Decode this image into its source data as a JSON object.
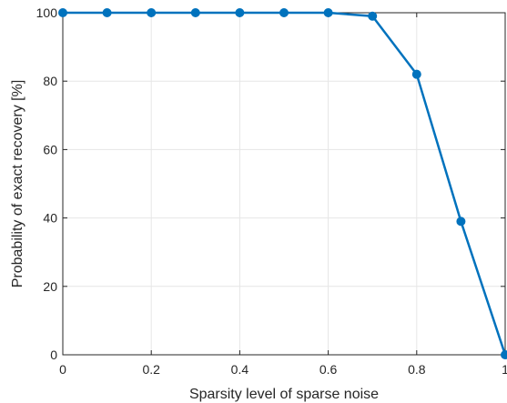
{
  "chart_data": {
    "type": "line",
    "title": "",
    "xlabel": "Sparsity level of sparse noise",
    "ylabel": "Probability of exact recovery [%]",
    "xlim": [
      0,
      1
    ],
    "ylim": [
      0,
      100
    ],
    "xticks": [
      0,
      0.2,
      0.4,
      0.6,
      0.8,
      1
    ],
    "xtick_labels": [
      "0",
      "0.2",
      "0.4",
      "0.6",
      "0.8",
      "1"
    ],
    "yticks": [
      0,
      20,
      40,
      60,
      80,
      100
    ],
    "ytick_labels": [
      "0",
      "20",
      "40",
      "60",
      "80",
      "100"
    ],
    "xgrid": [
      0,
      0.2,
      0.4,
      0.6,
      0.8,
      1
    ],
    "ygrid": [
      0,
      20,
      40,
      60,
      80,
      100
    ],
    "grid": true,
    "box": true,
    "series": [
      {
        "color": "#0072BD",
        "marker": "circle",
        "x": [
          0,
          0.1,
          0.2,
          0.3,
          0.4,
          0.5,
          0.6,
          0.7,
          0.8,
          0.9,
          1
        ],
        "y": [
          100,
          100,
          100,
          100,
          100,
          100,
          100,
          99,
          82,
          39,
          0
        ]
      }
    ]
  }
}
